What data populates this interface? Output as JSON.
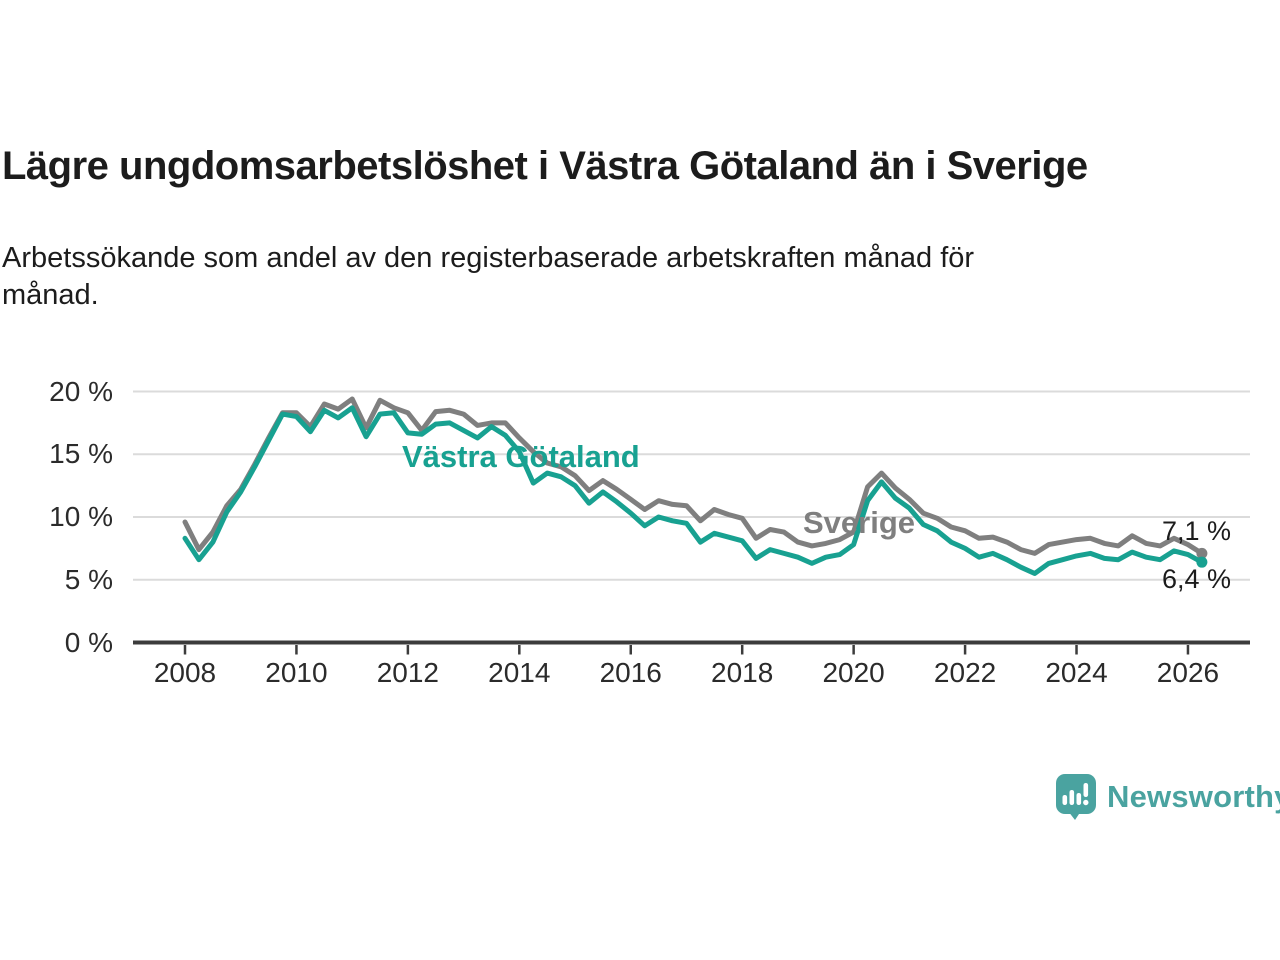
{
  "header": {
    "title": "Lägre ungdomsarbetslöshet i Västra Götaland än i Sverige",
    "subtitle_line1": "Arbetssökande som andel av den registerbaserade arbetskraften månad för",
    "subtitle_line2": "månad."
  },
  "footer": {
    "brand": "Newsworthy"
  },
  "colors": {
    "vastra_gotaland": "#18A191",
    "sverige": "#7F7F7F",
    "grid": "#DBDBDB",
    "axis": "#3C3C3C",
    "text": "#1C1C1C",
    "brand_teal": "#4AA3A0"
  },
  "chart_data": {
    "type": "line",
    "title": "Lägre ungdomsarbetslöshet i Västra Götaland än i Sverige",
    "subtitle": "Arbetssökande som andel av den registerbaserade arbetskraften månad för månad.",
    "grid": "horizontal-only",
    "legend": "inline-labels",
    "ylim": [
      0,
      21
    ],
    "xlim": [
      2007.1,
      2027.1
    ],
    "yticks": [
      {
        "value": 0,
        "label": "0 %"
      },
      {
        "value": 5,
        "label": "5 %"
      },
      {
        "value": 10,
        "label": "10 %"
      },
      {
        "value": 15,
        "label": "15 %"
      },
      {
        "value": 20,
        "label": "20 %"
      }
    ],
    "xticks": [
      {
        "value": 2008,
        "label": "2008"
      },
      {
        "value": 2010,
        "label": "2010"
      },
      {
        "value": 2012,
        "label": "2012"
      },
      {
        "value": 2014,
        "label": "2014"
      },
      {
        "value": 2016,
        "label": "2016"
      },
      {
        "value": 2018,
        "label": "2018"
      },
      {
        "value": 2020,
        "label": "2020"
      },
      {
        "value": 2022,
        "label": "2022"
      },
      {
        "value": 2024,
        "label": "2024"
      },
      {
        "value": 2026,
        "label": "2026"
      }
    ],
    "x": [
      2008,
      2008.25,
      2008.5,
      2008.75,
      2009,
      2009.25,
      2009.5,
      2009.75,
      2010,
      2010.25,
      2010.5,
      2010.75,
      2011,
      2011.25,
      2011.5,
      2011.75,
      2012,
      2012.25,
      2012.5,
      2012.75,
      2013,
      2013.25,
      2013.5,
      2013.75,
      2014,
      2014.25,
      2014.5,
      2014.75,
      2015,
      2015.25,
      2015.5,
      2015.75,
      2016,
      2016.25,
      2016.5,
      2016.75,
      2017,
      2017.25,
      2017.5,
      2017.75,
      2018,
      2018.25,
      2018.5,
      2018.75,
      2019,
      2019.25,
      2019.5,
      2019.75,
      2020,
      2020.25,
      2020.5,
      2020.75,
      2021,
      2021.25,
      2021.5,
      2021.75,
      2022,
      2022.25,
      2022.5,
      2022.75,
      2023,
      2023.25,
      2023.5,
      2023.75,
      2024,
      2024.25,
      2024.5,
      2024.75,
      2025,
      2025.25,
      2025.5,
      2025.75,
      2026,
      2026.25
    ],
    "series": [
      {
        "name": "Sverige",
        "color": "#7F7F7F",
        "end_label": "7,1 %",
        "final_value": 7.1,
        "values": [
          9.6,
          7.4,
          8.8,
          10.9,
          12.2,
          14.2,
          16.3,
          18.3,
          18.3,
          17.2,
          19.0,
          18.6,
          19.4,
          17.1,
          19.3,
          18.7,
          18.3,
          16.9,
          18.4,
          18.5,
          18.2,
          17.3,
          17.5,
          17.5,
          16.3,
          15.2,
          14.3,
          14.0,
          13.3,
          12.1,
          12.9,
          12.2,
          11.4,
          10.6,
          11.3,
          11.0,
          10.9,
          9.7,
          10.6,
          10.2,
          9.9,
          8.3,
          9.0,
          8.8,
          8.0,
          7.7,
          7.9,
          8.2,
          8.8,
          12.4,
          13.5,
          12.3,
          11.4,
          10.3,
          9.9,
          9.2,
          8.9,
          8.3,
          8.4,
          8.0,
          7.4,
          7.1,
          7.8,
          8.0,
          8.2,
          8.3,
          7.9,
          7.7,
          8.5,
          7.9,
          7.7,
          8.3,
          7.8,
          7.1
        ]
      },
      {
        "name": "Västra Götaland",
        "color": "#18A191",
        "end_label": "6,4 %",
        "final_value": 6.4,
        "values": [
          8.3,
          6.6,
          8.0,
          10.4,
          12.0,
          14.0,
          16.1,
          18.2,
          18.0,
          16.8,
          18.5,
          17.9,
          18.7,
          16.4,
          18.2,
          18.3,
          16.7,
          16.6,
          17.4,
          17.5,
          16.9,
          16.3,
          17.2,
          16.5,
          15.2,
          12.7,
          13.5,
          13.2,
          12.5,
          11.1,
          12.0,
          11.2,
          10.3,
          9.3,
          10.0,
          9.7,
          9.5,
          8.0,
          8.7,
          8.4,
          8.1,
          6.7,
          7.4,
          7.1,
          6.8,
          6.3,
          6.8,
          7.0,
          7.8,
          11.3,
          12.8,
          11.5,
          10.7,
          9.4,
          8.9,
          8.0,
          7.5,
          6.8,
          7.1,
          6.6,
          6.0,
          5.5,
          6.3,
          6.6,
          6.9,
          7.1,
          6.7,
          6.6,
          7.2,
          6.8,
          6.6,
          7.3,
          7.0,
          6.4
        ]
      }
    ]
  }
}
